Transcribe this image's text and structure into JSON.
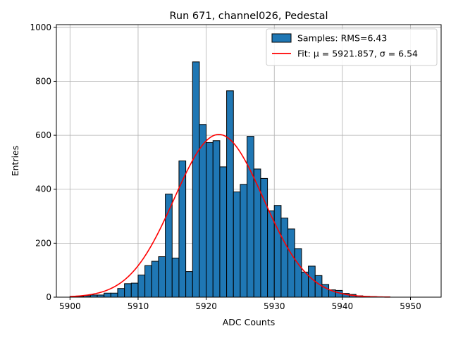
{
  "chart_data": {
    "type": "bar",
    "title": "Run 671, channel026, Pedestal",
    "xlabel": "ADC Counts",
    "ylabel": "Entries",
    "xlim": [
      5898,
      5954.5
    ],
    "ylim": [
      0,
      1010
    ],
    "xticks": [
      "5900",
      "5910",
      "5920",
      "5930",
      "5940",
      "5950"
    ],
    "yticks": [
      "0",
      "200",
      "400",
      "600",
      "800",
      "1000"
    ],
    "grid": true,
    "legend_position": "top-right",
    "bin_width": 1,
    "series": [
      {
        "name": "Samples: RMS=6.43",
        "color": "#1f77b4",
        "bins": [
          [
            5900,
            3
          ],
          [
            5901,
            3
          ],
          [
            5902,
            5
          ],
          [
            5903,
            8
          ],
          [
            5904,
            8
          ],
          [
            5905,
            15
          ],
          [
            5906,
            15
          ],
          [
            5907,
            32
          ],
          [
            5908,
            50
          ],
          [
            5909,
            52
          ],
          [
            5910,
            82
          ],
          [
            5911,
            117
          ],
          [
            5912,
            133
          ],
          [
            5913,
            150
          ],
          [
            5914,
            382
          ],
          [
            5915,
            145
          ],
          [
            5916,
            505
          ],
          [
            5917,
            95
          ],
          [
            5918,
            872
          ],
          [
            5919,
            640
          ],
          [
            5920,
            573
          ],
          [
            5921,
            580
          ],
          [
            5922,
            483
          ],
          [
            5923,
            765
          ],
          [
            5924,
            390
          ],
          [
            5925,
            418
          ],
          [
            5926,
            596
          ],
          [
            5927,
            475
          ],
          [
            5928,
            440
          ],
          [
            5929,
            320
          ],
          [
            5930,
            340
          ],
          [
            5931,
            293
          ],
          [
            5932,
            253
          ],
          [
            5933,
            180
          ],
          [
            5934,
            93
          ],
          [
            5935,
            115
          ],
          [
            5936,
            80
          ],
          [
            5937,
            47
          ],
          [
            5938,
            27
          ],
          [
            5939,
            25
          ],
          [
            5940,
            14
          ],
          [
            5941,
            10
          ],
          [
            5942,
            5
          ],
          [
            5943,
            3
          ],
          [
            5944,
            2
          ],
          [
            5945,
            1
          ],
          [
            5946,
            1
          ],
          [
            5947,
            0
          ]
        ]
      },
      {
        "name": "Fit: μ = 5921.857, σ = 6.54",
        "type": "line",
        "color": "#ff0000",
        "mu": 5921.857,
        "sigma": 6.54,
        "amplitude": 603,
        "x_range": [
          5900,
          5947
        ]
      }
    ]
  }
}
